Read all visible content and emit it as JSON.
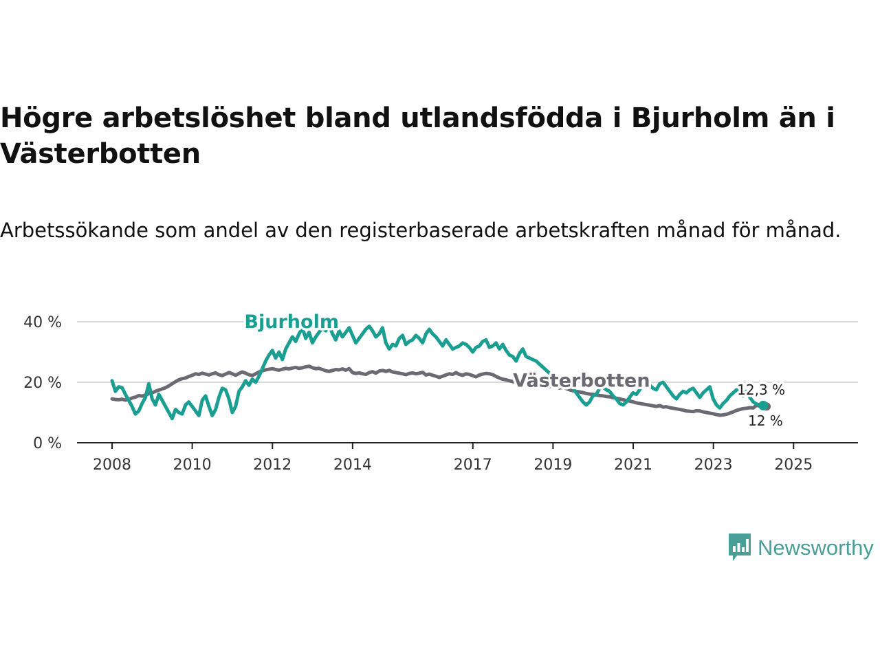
{
  "header": {
    "title": "Högre arbetslöshet bland utlandsfödda i Bjurholm än i Västerbotten",
    "subtitle": "Arbetssökande som andel av den registerbaserade arbetskraften månad för månad."
  },
  "brand": {
    "name": "Newsworthy",
    "color": "#4a9e98",
    "icon": "newsworthy-logo-icon"
  },
  "colors": {
    "bjurholm": "#1a9e92",
    "vasterbotten": "#6b6a72",
    "grid": "#d8d8d8",
    "axis": "#222222"
  },
  "chart_data": {
    "type": "line",
    "title": "Högre arbetslöshet bland utlandsfödda i Bjurholm än i Västerbotten",
    "xlabel": "",
    "ylabel": "",
    "x_range": [
      2008.0,
      2025.75
    ],
    "ylim": [
      0,
      40
    ],
    "y_ticks": [
      0,
      20,
      40
    ],
    "y_tick_labels": [
      "0 %",
      "20 %",
      "40 %"
    ],
    "x_ticks": [
      2008,
      2010,
      2012,
      2014,
      2017,
      2019,
      2021,
      2023,
      2025
    ],
    "x_tick_labels": [
      "2008",
      "2010",
      "2012",
      "2014",
      "2017",
      "2019",
      "2021",
      "2023",
      "2025"
    ],
    "grid": true,
    "series": [
      {
        "name": "Västerbotten",
        "label": "Västerbotten",
        "end_label": "12 %",
        "x_start": 2008.0,
        "step": 0.0833,
        "values": [
          14.5,
          14.3,
          14.2,
          14.4,
          14.1,
          14.3,
          14.8,
          15.1,
          15.6,
          15.4,
          15.8,
          16.2,
          16.5,
          17.0,
          17.4,
          17.8,
          18.2,
          18.8,
          19.5,
          20.2,
          20.8,
          21.2,
          21.4,
          21.9,
          22.3,
          22.8,
          22.6,
          23.0,
          22.7,
          22.4,
          22.8,
          23.1,
          22.5,
          22.2,
          22.7,
          23.2,
          22.8,
          22.3,
          22.9,
          23.4,
          23.0,
          22.5,
          22.2,
          22.8,
          23.4,
          23.8,
          24.1,
          24.3,
          24.5,
          24.2,
          24.0,
          24.3,
          24.6,
          24.4,
          24.7,
          24.9,
          24.6,
          24.8,
          25.1,
          25.3,
          24.8,
          24.5,
          24.6,
          24.2,
          23.8,
          23.6,
          23.9,
          24.2,
          24.1,
          24.4,
          24.0,
          24.5,
          23.2,
          22.9,
          23.1,
          22.8,
          22.6,
          23.2,
          23.5,
          23.0,
          23.7,
          23.9,
          23.6,
          23.9,
          23.4,
          23.2,
          23.0,
          22.8,
          22.5,
          22.9,
          23.1,
          22.8,
          23.0,
          23.3,
          22.4,
          22.7,
          22.3,
          22.0,
          21.6,
          22.0,
          22.4,
          22.8,
          22.6,
          23.2,
          22.6,
          22.3,
          22.8,
          22.6,
          22.2,
          21.8,
          22.4,
          22.7,
          22.9,
          22.8,
          22.5,
          21.9,
          21.4,
          21.0,
          20.8,
          20.5,
          20.2,
          20.0,
          20.3,
          20.1,
          19.7,
          19.4,
          19.6,
          19.3,
          19.0,
          18.9,
          18.7,
          18.6,
          18.9,
          18.4,
          18.1,
          18.3,
          17.9,
          17.5,
          17.2,
          17.0,
          16.8,
          16.6,
          16.3,
          16.1,
          16.0,
          15.8,
          15.6,
          15.5,
          15.3,
          15.2,
          14.9,
          14.7,
          14.5,
          14.2,
          14.0,
          13.8,
          13.5,
          13.2,
          13.0,
          12.8,
          12.6,
          12.4,
          12.2,
          12.0,
          12.3,
          11.8,
          11.9,
          11.6,
          11.4,
          11.2,
          11.0,
          10.8,
          10.5,
          10.4,
          10.3,
          10.6,
          10.5,
          10.2,
          10.0,
          9.8,
          9.6,
          9.3,
          9.1,
          9.2,
          9.4,
          9.8,
          10.2,
          10.7,
          11.0,
          11.3,
          11.4,
          11.6,
          11.5,
          12.4,
          12.1,
          12.0,
          12.0
        ]
      },
      {
        "name": "Bjurholm",
        "label": "Bjurholm",
        "end_label": "12,3 %",
        "x_start": 2008.0,
        "step": 0.0833,
        "values": [
          20.5,
          17.0,
          18.5,
          18.2,
          16.0,
          14.0,
          12.0,
          9.5,
          10.5,
          13.0,
          15.0,
          19.5,
          14.5,
          12.5,
          16.0,
          14.0,
          12.0,
          10.0,
          8.0,
          11.0,
          10.0,
          9.5,
          12.5,
          13.5,
          12.0,
          10.5,
          9.0,
          14.0,
          15.5,
          12.0,
          9.0,
          11.0,
          15.0,
          18.0,
          17.5,
          14.5,
          10.0,
          12.0,
          17.0,
          18.5,
          20.5,
          19.0,
          21.0,
          20.0,
          22.0,
          24.5,
          27.0,
          29.0,
          30.5,
          28.0,
          30.0,
          27.5,
          31.0,
          33.0,
          35.0,
          33.5,
          36.0,
          38.0,
          34.5,
          36.5,
          33.0,
          35.0,
          36.5,
          38.0,
          37.0,
          39.0,
          36.0,
          34.0,
          37.0,
          35.0,
          36.5,
          38.0,
          35.5,
          33.0,
          34.5,
          36.0,
          37.5,
          38.5,
          37.0,
          35.0,
          36.0,
          38.0,
          33.0,
          31.0,
          32.5,
          32.0,
          34.5,
          35.5,
          32.5,
          33.5,
          34.0,
          35.5,
          34.5,
          33.0,
          36.0,
          37.5,
          36.0,
          35.0,
          33.5,
          32.0,
          34.0,
          32.5,
          31.0,
          31.5,
          32.0,
          33.0,
          32.5,
          31.5,
          30.0,
          31.5,
          32.0,
          33.5,
          34.0,
          31.5,
          32.0,
          33.0,
          31.0,
          32.5,
          30.5,
          29.0,
          28.5,
          27.0,
          29.5,
          31.0,
          28.5,
          28.0,
          27.5,
          27.0,
          26.0,
          25.0,
          24.0,
          23.0,
          22.0,
          21.0,
          20.5,
          20.0,
          19.5,
          19.0,
          18.0,
          16.5,
          15.0,
          13.5,
          12.5,
          13.5,
          15.5,
          16.0,
          18.0,
          18.5,
          17.5,
          17.0,
          15.5,
          14.5,
          13.0,
          12.5,
          13.5,
          15.0,
          16.5,
          16.0,
          17.5,
          19.5,
          18.5,
          19.0,
          18.0,
          17.5,
          19.5,
          20.0,
          18.5,
          17.0,
          15.5,
          14.5,
          16.0,
          17.0,
          16.5,
          17.5,
          18.0,
          16.5,
          15.0,
          16.5,
          17.5,
          18.5,
          14.5,
          12.5,
          11.5,
          13.0,
          14.0,
          15.5,
          16.5,
          17.5,
          16.0,
          15.5,
          17.0,
          15.0,
          13.5,
          12.8,
          12.5,
          12.3
        ]
      }
    ],
    "annotations": [
      {
        "text": "Bjurholm",
        "series": "Bjurholm"
      },
      {
        "text": "Västerbotten",
        "series": "Västerbotten"
      },
      {
        "text": "12,3 %",
        "series": "Bjurholm"
      },
      {
        "text": "12 %",
        "series": "Västerbotten"
      }
    ]
  }
}
